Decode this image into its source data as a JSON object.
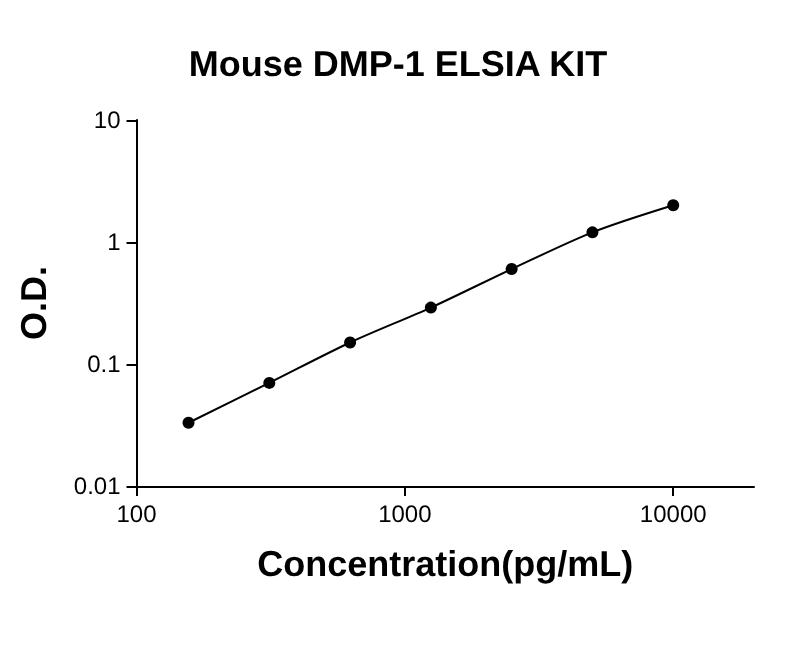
{
  "chart_data": {
    "type": "line",
    "title": "Mouse DMP-1 ELSIA KIT",
    "xlabel": "Concentration(pg/mL)",
    "ylabel": "O.D.",
    "x": [
      156.25,
      312.5,
      625,
      1250,
      2500,
      5000,
      10000
    ],
    "series": [
      {
        "color": "#000000",
        "values": [
          0.033,
          0.07,
          0.15,
          0.29,
          0.6,
          1.2,
          2.0
        ]
      }
    ],
    "xlim": [
      100,
      20000
    ],
    "xticks": [
      100,
      1000,
      10000
    ],
    "ylim": [
      0.01,
      10
    ],
    "yticks": [
      0.01,
      0.1,
      1,
      10
    ],
    "log": "xy",
    "grid": false,
    "marker": "circle",
    "line_style": "solid"
  }
}
